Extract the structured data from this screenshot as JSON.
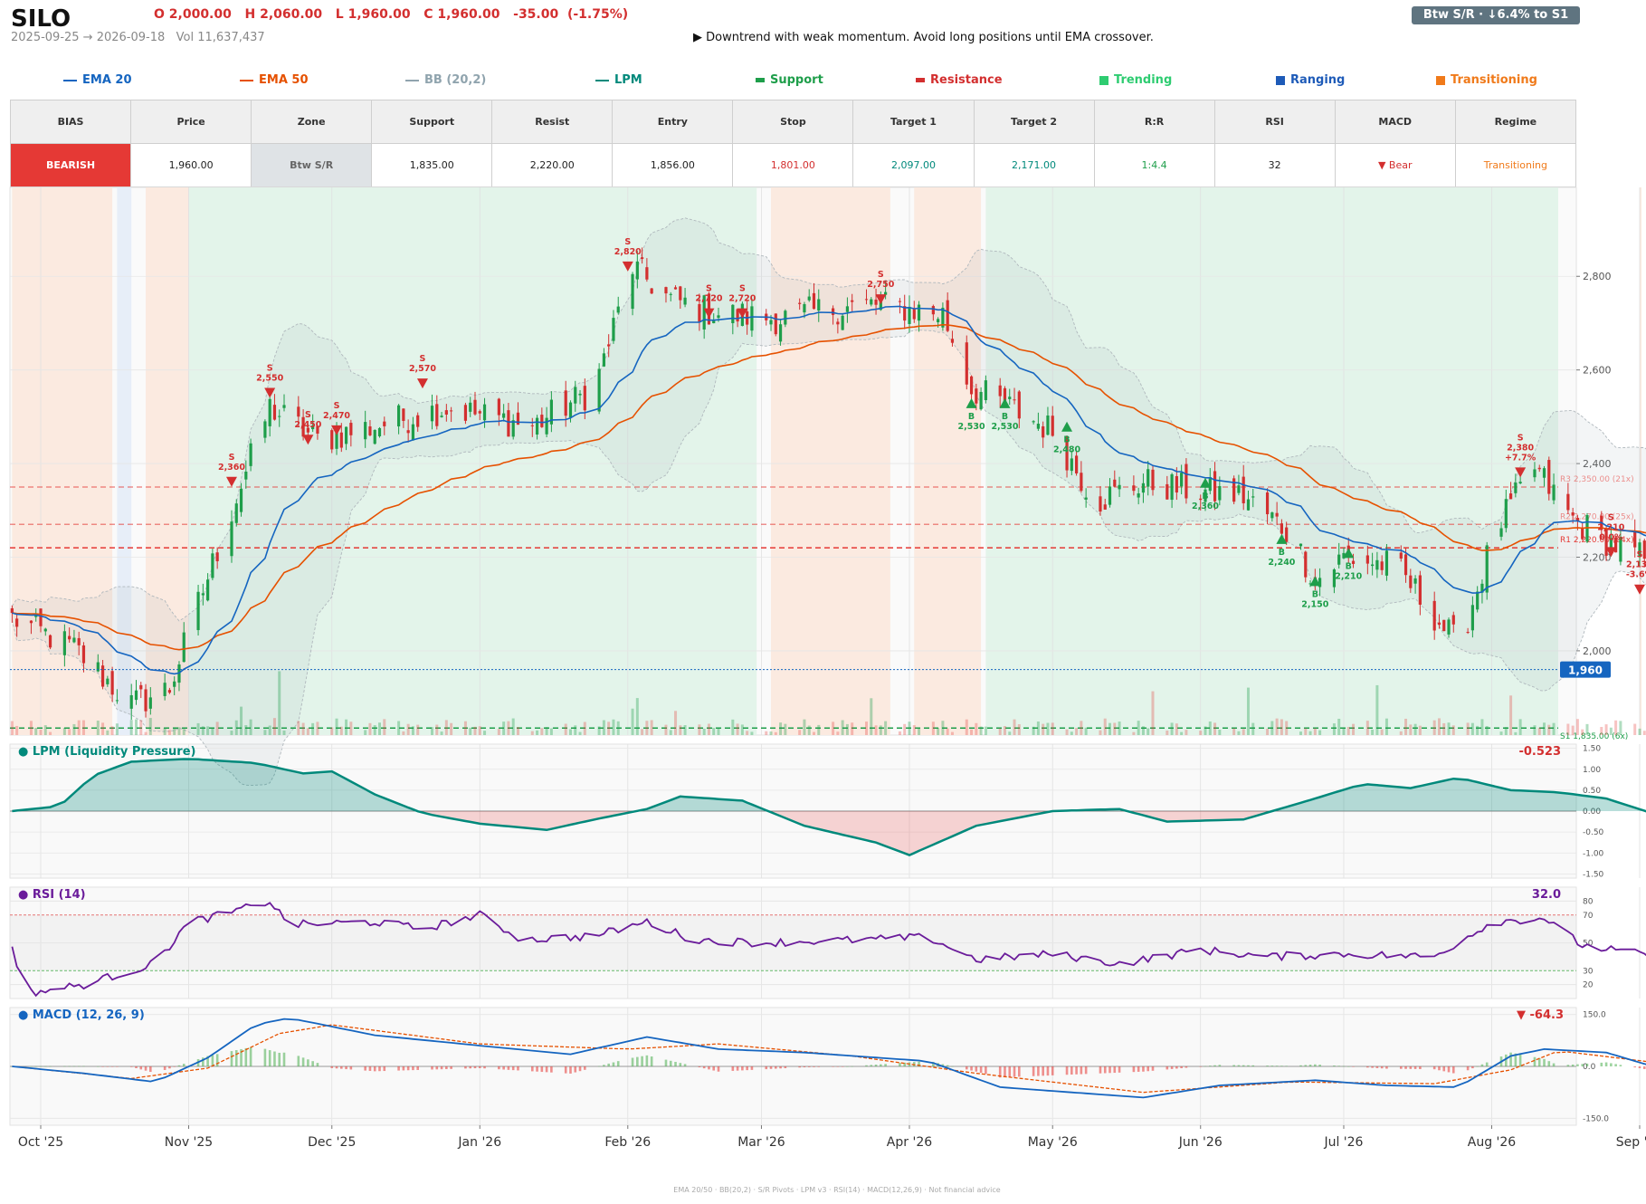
{
  "header": {
    "ticker": "SILO",
    "ohlc": "O 2,000.00   H 2,060.00   L 1,960.00   C 1,960.00   -35.00  (-1.75%)",
    "date_range": "2025-09-25 → 2026-09-18   Vol 11,637,437",
    "advice": "▶  Downtrend with weak momentum. Avoid long positions until EMA crossover.",
    "badge": "Btw S/R  ·  ↓6.4% to S1"
  },
  "legend": [
    {
      "label": "EMA 20",
      "color": "#1565c0",
      "shape": "line"
    },
    {
      "label": "EMA 50",
      "color": "#e65100",
      "shape": "line"
    },
    {
      "label": "BB (20,2)",
      "color": "#90a4ae",
      "shape": "line"
    },
    {
      "label": "LPM",
      "color": "#00897b",
      "shape": "line"
    },
    {
      "label": "Support",
      "color": "#1e9e4a",
      "shape": "bar"
    },
    {
      "label": "Resistance",
      "color": "#d32f2f",
      "shape": "bar"
    },
    {
      "label": "Trending",
      "color": "#2ecc71",
      "shape": "square"
    },
    {
      "label": "Ranging",
      "color": "#1e5bb8",
      "shape": "square"
    },
    {
      "label": "Transitioning",
      "color": "#f07a1a",
      "shape": "square"
    }
  ],
  "table": {
    "headers": [
      "BIAS",
      "Price",
      "Zone",
      "Support",
      "Resist",
      "Entry",
      "Stop",
      "Target 1",
      "Target 2",
      "R:R",
      "RSI",
      "MACD",
      "Regime"
    ],
    "values": [
      "BEARISH",
      "1,960.00",
      "Btw S/R",
      "1,835.00",
      "2,220.00",
      "1,856.00",
      "1,801.00",
      "2,097.00",
      "2,171.00",
      "1:4.4",
      "32",
      "▼ Bear",
      "Transitioning"
    ],
    "colors": [
      "#ffffff",
      "#222222",
      "#666666",
      "#222222",
      "#222222",
      "#222222",
      "#d32f2f",
      "#00897b",
      "#00897b",
      "#1e9e4a",
      "#222222",
      "#d32f2f",
      "#f07a1a"
    ]
  },
  "panels": {
    "lpm_title": "● LPM (Liquidity Pressure)",
    "lpm_value": "-0.523",
    "rsi_title": "● RSI (14)",
    "rsi_value": "32.0",
    "macd_title": "● MACD (12, 26, 9)",
    "macd_value": "▼ -64.3"
  },
  "footer": "EMA 20/50  ·  BB(20,2)  ·  S/R Pivots  ·  LPM v3  ·  RSI(14)  ·  MACD(12,26,9)  ·  Not financial advice",
  "chart_data": {
    "type": "candlestick",
    "x_ticks": [
      "Oct '25",
      "Nov '25",
      "Dec '25",
      "Jan '26",
      "Feb '26",
      "Mar '26",
      "Apr '26",
      "May '26",
      "Jun '26",
      "Jul '26",
      "Aug '26",
      "Sep '26"
    ],
    "x_tick_dates": [
      "2025-10-01",
      "2025-11-01",
      "2025-12-01",
      "2026-01-01",
      "2026-02-01",
      "2026-03-01",
      "2026-04-01",
      "2026-05-01",
      "2026-06-01",
      "2026-07-01",
      "2026-08-01",
      "2026-09-01"
    ],
    "start_date": "2025-09-25",
    "end_date": "2026-09-18",
    "price_ylim": [
      1820,
      2990
    ],
    "price_ticks": [
      "2,000",
      "2,200",
      "2,400",
      "2,600",
      "2,800"
    ],
    "last_price_label": "1,960",
    "last_price": 1960,
    "close_anchors": [
      [
        "2025-09-25",
        2070
      ],
      [
        "2025-10-08",
        2005
      ],
      [
        "2025-10-20",
        1885
      ],
      [
        "2025-10-28",
        1920
      ],
      [
        "2025-11-03",
        2100
      ],
      [
        "2025-11-10",
        2300
      ],
      [
        "2025-11-18",
        2520
      ],
      [
        "2025-11-28",
        2450
      ],
      [
        "2025-12-10",
        2480
      ],
      [
        "2025-12-25",
        2520
      ],
      [
        "2026-01-12",
        2480
      ],
      [
        "2026-01-25",
        2560
      ],
      [
        "2026-02-02",
        2820
      ],
      [
        "2026-02-10",
        2750
      ],
      [
        "2026-02-20",
        2720
      ],
      [
        "2026-03-05",
        2710
      ],
      [
        "2026-03-15",
        2730
      ],
      [
        "2026-03-25",
        2740
      ],
      [
        "2026-04-08",
        2720
      ],
      [
        "2026-04-14",
        2560
      ],
      [
        "2026-04-22",
        2520
      ],
      [
        "2026-05-01",
        2470
      ],
      [
        "2026-05-10",
        2320
      ],
      [
        "2026-05-20",
        2360
      ],
      [
        "2026-06-01",
        2340
      ],
      [
        "2026-06-10",
        2330
      ],
      [
        "2026-06-20",
        2250
      ],
      [
        "2026-06-25",
        2150
      ],
      [
        "2026-07-01",
        2200
      ],
      [
        "2026-07-12",
        2180
      ],
      [
        "2026-07-25",
        2010
      ],
      [
        "2026-08-02",
        2260
      ],
      [
        "2026-08-10",
        2390
      ],
      [
        "2026-08-18",
        2280
      ],
      [
        "2026-08-26",
        2230
      ],
      [
        "2026-09-05",
        2180
      ],
      [
        "2026-09-12",
        2010
      ],
      [
        "2026-09-18",
        1960
      ]
    ],
    "regimes": [
      {
        "from": "2025-09-25",
        "to": "2025-10-16",
        "regime": "Transitioning"
      },
      {
        "from": "2025-10-17",
        "to": "2025-10-20",
        "regime": "Ranging"
      },
      {
        "from": "2025-10-23",
        "to": "2025-11-01",
        "regime": "Transitioning"
      },
      {
        "from": "2025-11-01",
        "to": "2026-02-28",
        "regime": "Trending"
      },
      {
        "from": "2026-03-03",
        "to": "2026-03-28",
        "regime": "Transitioning"
      },
      {
        "from": "2026-04-02",
        "to": "2026-04-16",
        "regime": "Transitioning"
      },
      {
        "from": "2026-04-17",
        "to": "2026-09-01",
        "regime": "Trending"
      },
      {
        "from": "2026-09-01",
        "to": "2026-09-17",
        "regime": "Transitioning"
      }
    ],
    "levels": [
      {
        "label": "R3 2,350.00 (21x)",
        "value": 2350,
        "kind": "resistance"
      },
      {
        "label": "R2 2,270.00 (25x)",
        "value": 2270,
        "kind": "resistance"
      },
      {
        "label": "R1 2,220.00 (24x)",
        "value": 2220,
        "kind": "resistance"
      },
      {
        "label": "S1 1,835.00 (6x)",
        "value": 1835,
        "kind": "support"
      }
    ],
    "signals": [
      {
        "type": "S",
        "date": "2025-11-10",
        "price": 2360,
        "label": "2,360"
      },
      {
        "type": "S",
        "date": "2025-11-18",
        "price": 2550,
        "label": "2,550"
      },
      {
        "type": "S",
        "date": "2025-11-26",
        "price": 2450,
        "label": "2,450"
      },
      {
        "type": "S",
        "date": "2025-12-02",
        "price": 2470,
        "label": "2,470"
      },
      {
        "type": "S",
        "date": "2025-12-20",
        "price": 2570,
        "label": "2,570"
      },
      {
        "type": "S",
        "date": "2026-02-01",
        "price": 2820,
        "label": "2,820"
      },
      {
        "type": "S",
        "date": "2026-02-18",
        "price": 2720,
        "label": "2,720"
      },
      {
        "type": "S",
        "date": "2026-02-25",
        "price": 2720,
        "label": "2,720"
      },
      {
        "type": "S",
        "date": "2026-03-26",
        "price": 2750,
        "label": "2,750"
      },
      {
        "type": "B",
        "date": "2026-04-14",
        "price": 2530,
        "label": "2,530"
      },
      {
        "type": "B",
        "date": "2026-04-21",
        "price": 2530,
        "label": "2,530"
      },
      {
        "type": "B",
        "date": "2026-05-04",
        "price": 2480,
        "label": "2,480"
      },
      {
        "type": "B",
        "date": "2026-06-02",
        "price": 2360,
        "label": "2,360"
      },
      {
        "type": "B",
        "date": "2026-06-18",
        "price": 2240,
        "label": "2,240"
      },
      {
        "type": "B",
        "date": "2026-06-25",
        "price": 2150,
        "label": "2,150"
      },
      {
        "type": "B",
        "date": "2026-07-02",
        "price": 2210,
        "label": "2,210"
      },
      {
        "type": "S",
        "date": "2026-08-07",
        "price": 2380,
        "label": "2,380\n+7.7%"
      },
      {
        "type": "S",
        "date": "2026-08-26",
        "price": 2210,
        "label": "2,210\n0.0%"
      },
      {
        "type": "S",
        "date": "2026-09-01",
        "price": 2130,
        "label": "2,130\n-3.6%"
      }
    ],
    "lpm": {
      "ylim": [
        -1.6,
        1.6
      ],
      "ticks": [
        "-1.50",
        "-1.00",
        "-0.50",
        "0.00",
        "0.50",
        "1.00",
        "1.50"
      ],
      "anchors": [
        [
          "2025-09-25",
          0.0
        ],
        [
          "2025-10-05",
          0.12
        ],
        [
          "2025-10-12",
          0.85
        ],
        [
          "2025-10-20",
          1.18
        ],
        [
          "2025-11-01",
          1.25
        ],
        [
          "2025-11-15",
          1.15
        ],
        [
          "2025-11-25",
          0.9
        ],
        [
          "2025-12-01",
          0.95
        ],
        [
          "2025-12-10",
          0.4
        ],
        [
          "2025-12-20",
          -0.05
        ],
        [
          "2026-01-01",
          -0.3
        ],
        [
          "2026-01-15",
          -0.45
        ],
        [
          "2026-01-25",
          -0.2
        ],
        [
          "2026-02-05",
          0.05
        ],
        [
          "2026-02-12",
          0.35
        ],
        [
          "2026-02-25",
          0.25
        ],
        [
          "2026-03-10",
          -0.35
        ],
        [
          "2026-03-25",
          -0.75
        ],
        [
          "2026-04-01",
          -1.05
        ],
        [
          "2026-04-15",
          -0.35
        ],
        [
          "2026-05-01",
          0.0
        ],
        [
          "2026-05-15",
          0.05
        ],
        [
          "2026-05-25",
          -0.25
        ],
        [
          "2026-06-10",
          -0.2
        ],
        [
          "2026-06-25",
          0.3
        ],
        [
          "2026-07-05",
          0.65
        ],
        [
          "2026-07-15",
          0.55
        ],
        [
          "2026-07-25",
          0.8
        ],
        [
          "2026-08-05",
          0.5
        ],
        [
          "2026-08-15",
          0.45
        ],
        [
          "2026-08-25",
          0.3
        ],
        [
          "2026-09-05",
          -0.1
        ],
        [
          "2026-09-18",
          -0.52
        ]
      ]
    },
    "rsi": {
      "ylim": [
        10,
        90
      ],
      "ticks": [
        "20",
        "30",
        "50",
        "70",
        "80"
      ],
      "anchors": [
        [
          "2025-09-25",
          50
        ],
        [
          "2025-09-27",
          13
        ],
        [
          "2025-10-10",
          20
        ],
        [
          "2025-10-25",
          35
        ],
        [
          "2025-11-01",
          65
        ],
        [
          "2025-11-08",
          70
        ],
        [
          "2025-11-18",
          80
        ],
        [
          "2025-11-22",
          63
        ],
        [
          "2025-12-10",
          65
        ],
        [
          "2025-12-20",
          60
        ],
        [
          "2026-01-01",
          70
        ],
        [
          "2026-01-10",
          52
        ],
        [
          "2026-01-25",
          55
        ],
        [
          "2026-02-05",
          65
        ],
        [
          "2026-02-15",
          52
        ],
        [
          "2026-03-01",
          50
        ],
        [
          "2026-03-20",
          52
        ],
        [
          "2026-04-05",
          54
        ],
        [
          "2026-04-15",
          38
        ],
        [
          "2026-05-01",
          42
        ],
        [
          "2026-05-15",
          35
        ],
        [
          "2026-06-01",
          45
        ],
        [
          "2026-06-15",
          40
        ],
        [
          "2026-07-01",
          42
        ],
        [
          "2026-07-20",
          40
        ],
        [
          "2026-08-01",
          65
        ],
        [
          "2026-08-12",
          68
        ],
        [
          "2026-08-20",
          48
        ],
        [
          "2026-09-01",
          42
        ],
        [
          "2026-09-08",
          38
        ],
        [
          "2026-09-18",
          32
        ]
      ]
    },
    "macd": {
      "ylim": [
        -170,
        170
      ],
      "ticks": [
        "-150.0",
        "0.0",
        "150.0"
      ],
      "macd_anchors": [
        [
          "2025-09-25",
          0
        ],
        [
          "2025-10-10",
          -20
        ],
        [
          "2025-10-25",
          -45
        ],
        [
          "2025-11-05",
          25
        ],
        [
          "2025-11-15",
          120
        ],
        [
          "2025-11-22",
          140
        ],
        [
          "2025-12-10",
          90
        ],
        [
          "2026-01-01",
          60
        ],
        [
          "2026-01-20",
          35
        ],
        [
          "2026-02-05",
          85
        ],
        [
          "2026-02-20",
          50
        ],
        [
          "2026-03-10",
          40
        ],
        [
          "2026-04-05",
          15
        ],
        [
          "2026-04-20",
          -60
        ],
        [
          "2026-05-10",
          -80
        ],
        [
          "2026-05-20",
          -90
        ],
        [
          "2026-06-05",
          -55
        ],
        [
          "2026-06-25",
          -40
        ],
        [
          "2026-07-10",
          -55
        ],
        [
          "2026-07-25",
          -60
        ],
        [
          "2026-08-05",
          30
        ],
        [
          "2026-08-12",
          50
        ],
        [
          "2026-08-25",
          40
        ],
        [
          "2026-09-05",
          -5
        ],
        [
          "2026-09-18",
          -64
        ]
      ],
      "signal_anchors": [
        [
          "2025-09-25",
          0
        ],
        [
          "2025-10-20",
          -35
        ],
        [
          "2025-11-05",
          -5
        ],
        [
          "2025-11-20",
          95
        ],
        [
          "2025-12-01",
          120
        ],
        [
          "2026-01-01",
          65
        ],
        [
          "2026-02-01",
          50
        ],
        [
          "2026-02-20",
          65
        ],
        [
          "2026-03-20",
          30
        ],
        [
          "2026-04-15",
          -20
        ],
        [
          "2026-05-20",
          -75
        ],
        [
          "2026-06-20",
          -45
        ],
        [
          "2026-07-20",
          -50
        ],
        [
          "2026-08-05",
          -10
        ],
        [
          "2026-08-15",
          45
        ],
        [
          "2026-09-05",
          10
        ],
        [
          "2026-09-18",
          -45
        ]
      ]
    }
  }
}
